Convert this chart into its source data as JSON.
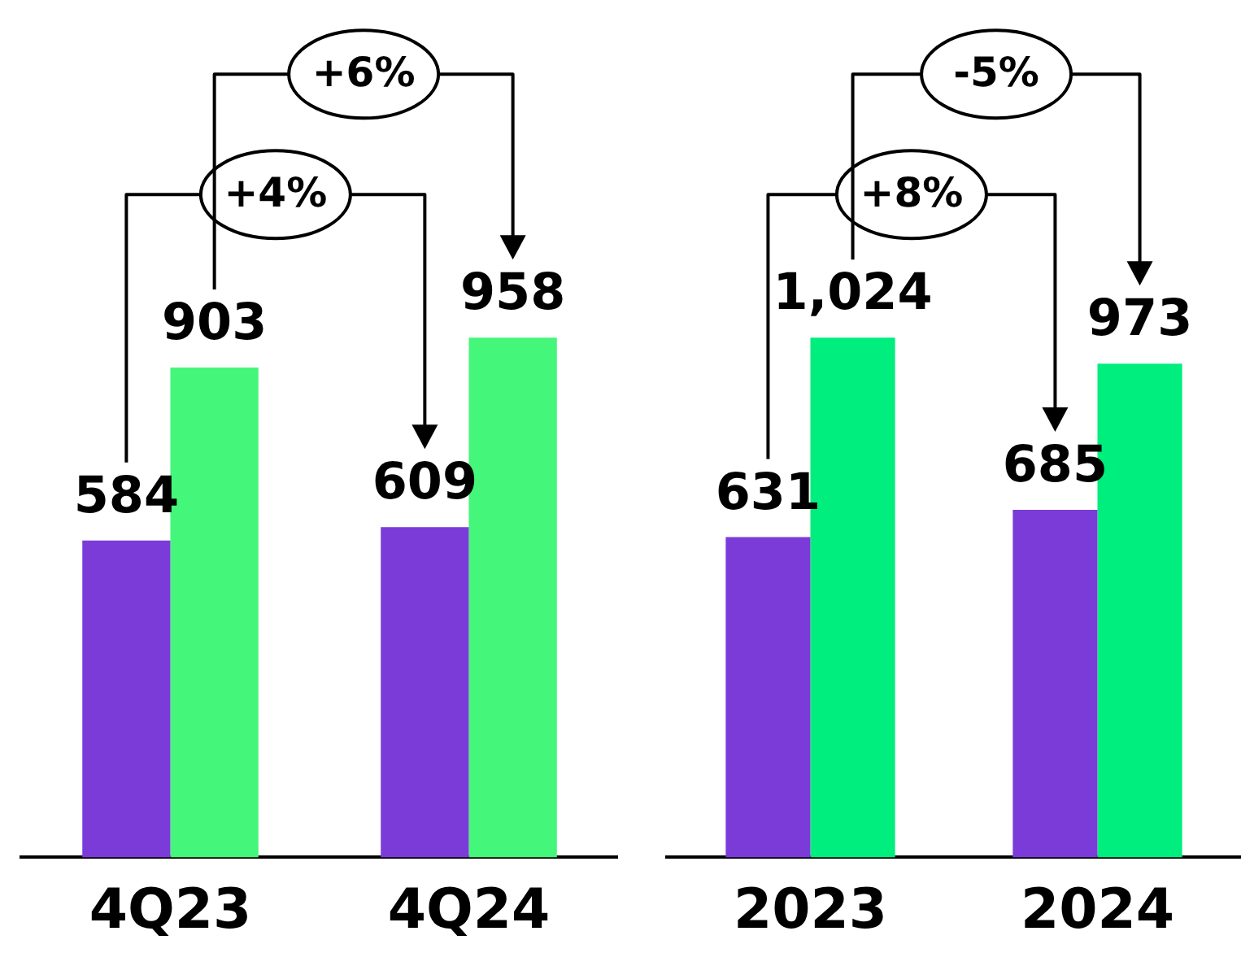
{
  "chart_data": [
    {
      "type": "bar",
      "categories": [
        "4Q23",
        "4Q24"
      ],
      "series": [
        {
          "color": "#7b3bd9",
          "values": [
            584,
            609
          ]
        },
        {
          "color": "#44f77a",
          "values": [
            903,
            958
          ]
        }
      ],
      "tick_labels": "x",
      "grid": false,
      "legend": false,
      "data_labels": true,
      "annotations": [
        "+4%",
        "+6%"
      ]
    },
    {
      "type": "bar",
      "categories": [
        "2023",
        "2024"
      ],
      "series": [
        {
          "color": "#7b3bd9",
          "values": [
            631,
            685
          ]
        },
        {
          "color": "#00ee7d",
          "values": [
            1024,
            973
          ],
          "value_labels": [
            "1,024",
            "973"
          ]
        }
      ],
      "tick_labels": "x",
      "grid": false,
      "legend": false,
      "data_labels": true,
      "annotations": [
        "+8%",
        "-5%"
      ]
    }
  ]
}
